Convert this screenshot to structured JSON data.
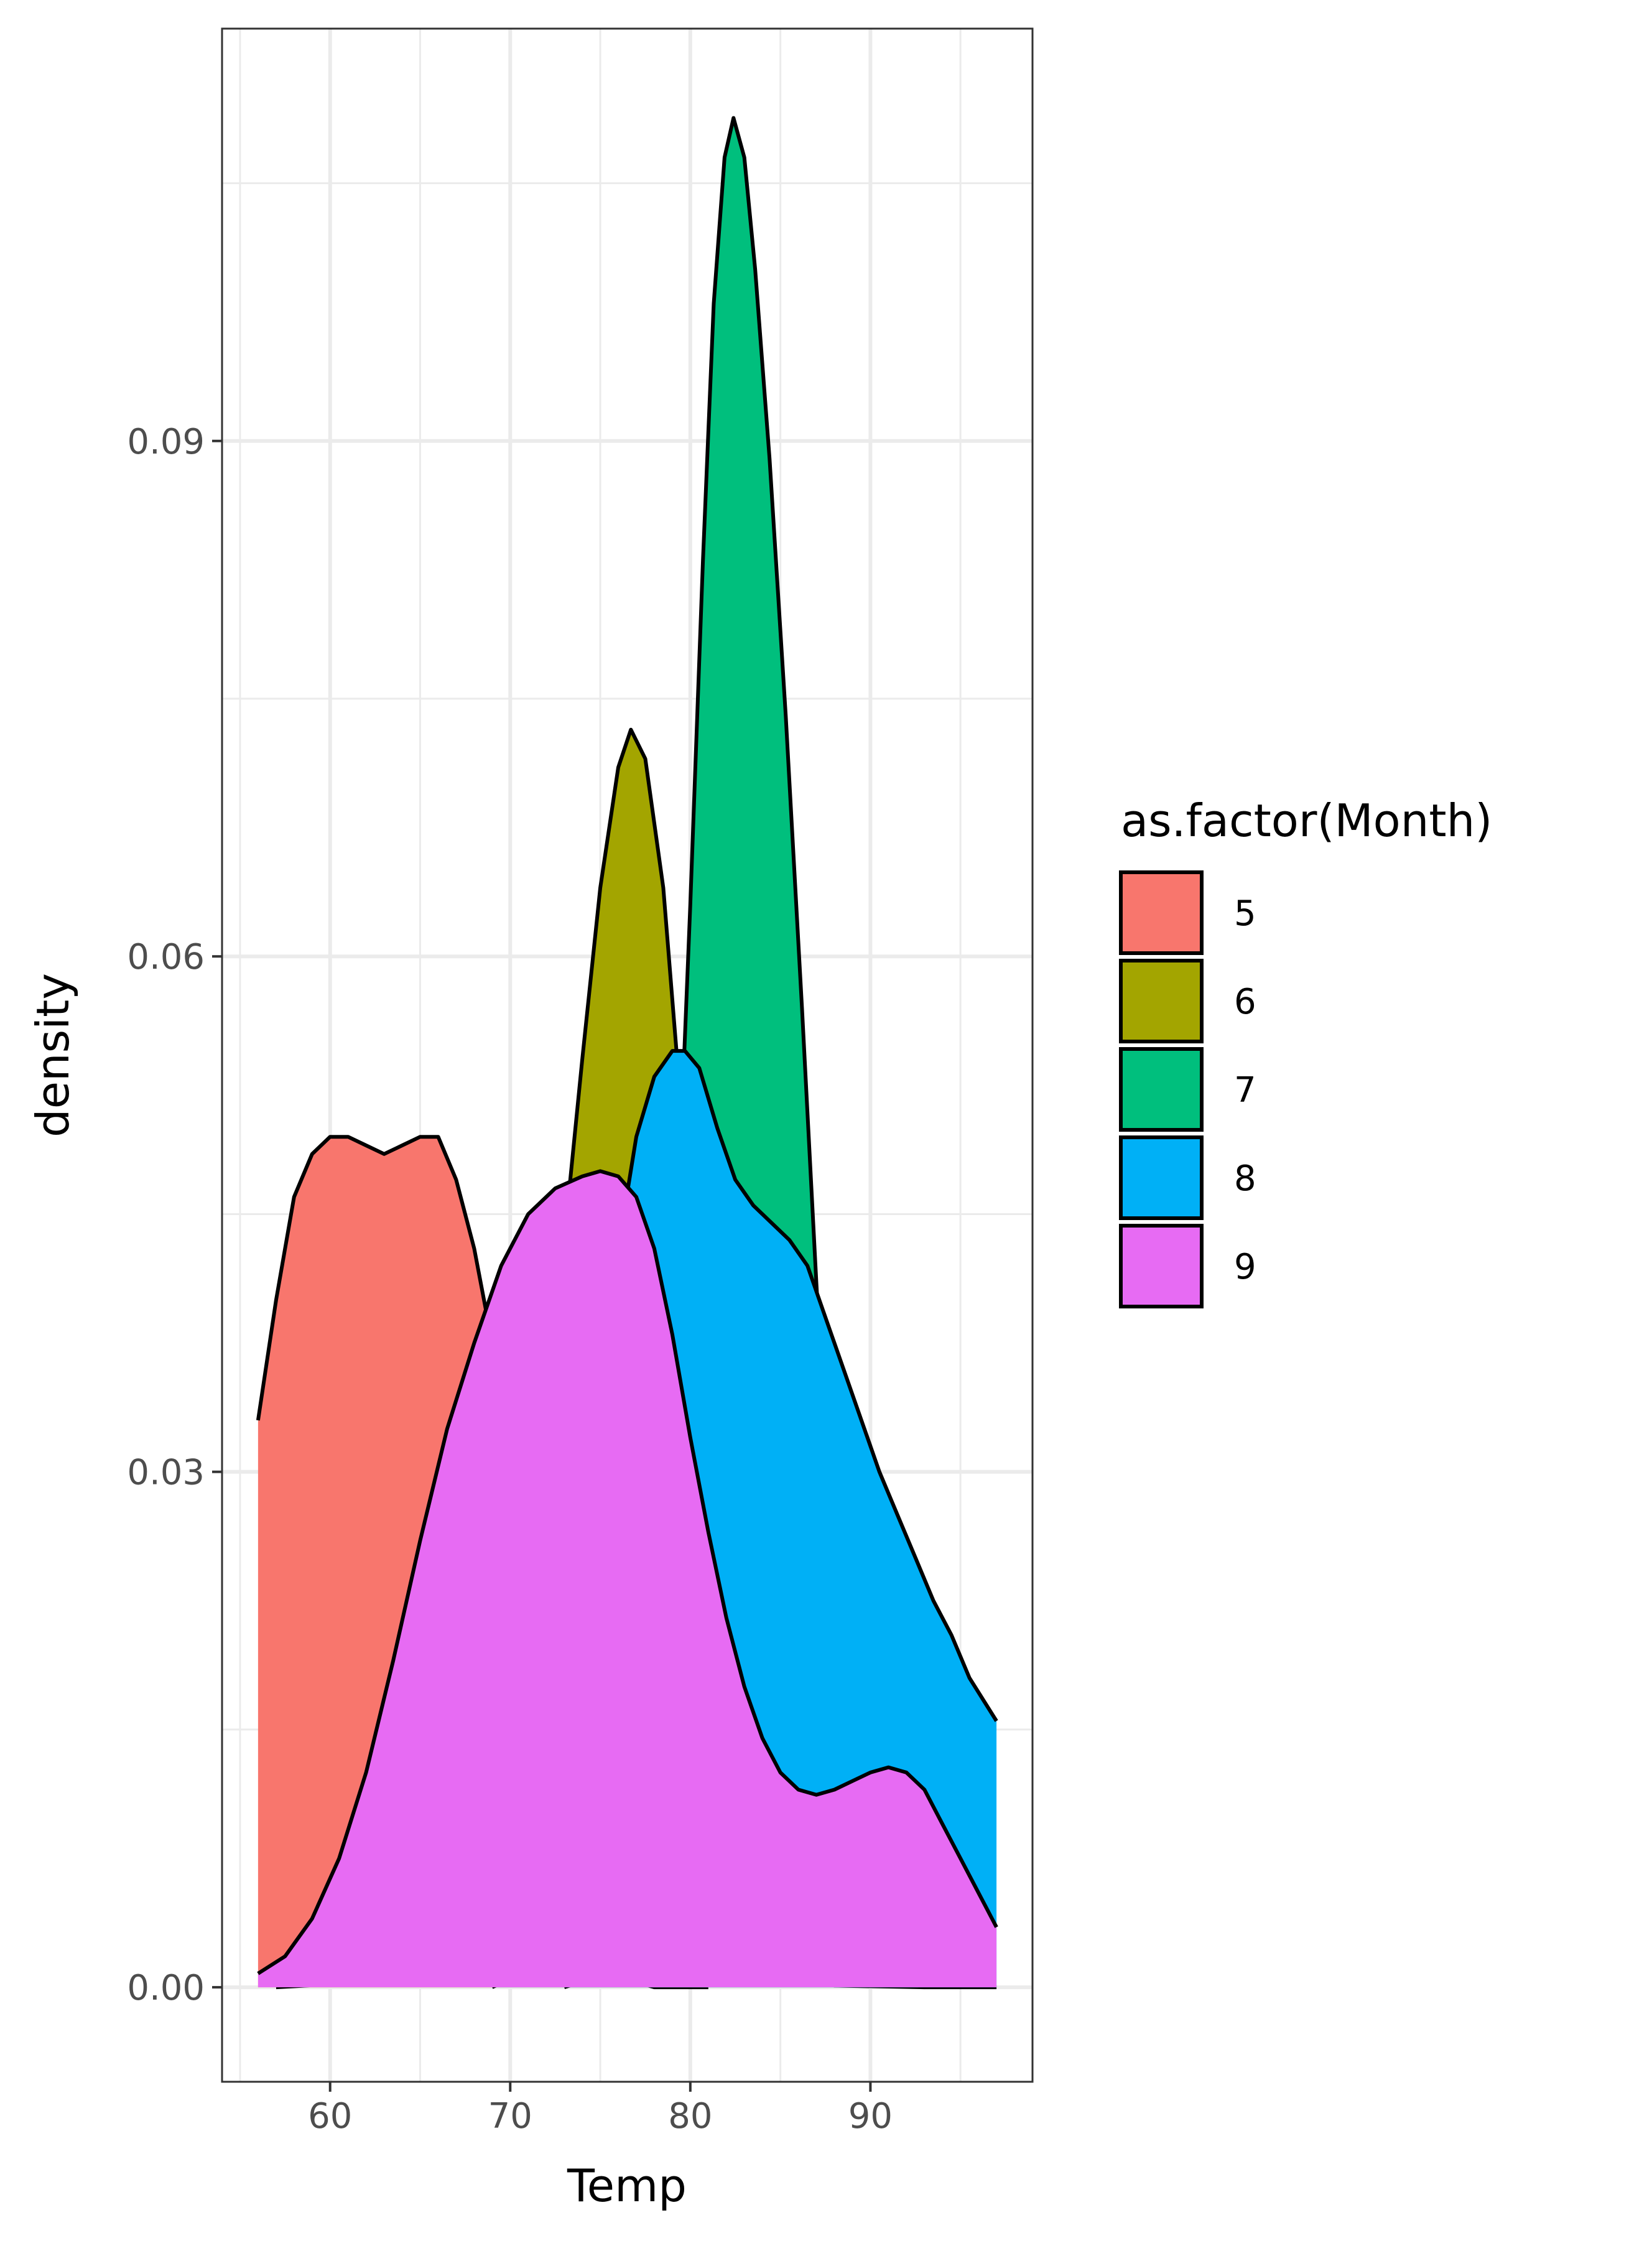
{
  "chart_data": {
    "type": "area",
    "subtype": "density",
    "title": "",
    "xlabel": "Temp",
    "ylabel": "density",
    "xlim": [
      54.0,
      99.0
    ],
    "ylim": [
      -0.0055,
      0.114
    ],
    "x_ticks": [
      60,
      70,
      80,
      90
    ],
    "x_tick_labels": [
      "60",
      "70",
      "80",
      "90"
    ],
    "y_ticks": [
      0.0,
      0.03,
      0.06,
      0.09
    ],
    "y_tick_labels": [
      "0.00",
      "0.03",
      "0.06",
      "0.09"
    ],
    "grid": true,
    "legend": {
      "title": "as.factor(Month)",
      "position": "right"
    },
    "series": [
      {
        "name": "5",
        "color": "#F8766D",
        "points": [
          [
            56,
            0.033
          ],
          [
            57,
            0.04
          ],
          [
            58,
            0.046
          ],
          [
            59,
            0.0485
          ],
          [
            60,
            0.0495
          ],
          [
            61,
            0.0495
          ],
          [
            62,
            0.049
          ],
          [
            63,
            0.0485
          ],
          [
            64,
            0.049
          ],
          [
            65,
            0.0495
          ],
          [
            66,
            0.0495
          ],
          [
            67,
            0.047
          ],
          [
            68,
            0.043
          ],
          [
            69,
            0.0375
          ],
          [
            70,
            0.031
          ],
          [
            71,
            0.024
          ],
          [
            72,
            0.0175
          ],
          [
            73,
            0.0115
          ],
          [
            74,
            0.007
          ],
          [
            75,
            0.0035
          ],
          [
            76,
            0.0015
          ],
          [
            77,
            0.0003
          ],
          [
            78,
            0.0
          ],
          [
            81,
            0.0
          ]
        ]
      },
      {
        "name": "6",
        "color": "#A3A500",
        "points": [
          [
            57,
            0.0
          ],
          [
            62,
            0.0003
          ],
          [
            64,
            0.002
          ],
          [
            66,
            0.006
          ],
          [
            68,
            0.013
          ],
          [
            70,
            0.022
          ],
          [
            72,
            0.034
          ],
          [
            73,
            0.0435
          ],
          [
            74,
            0.054
          ],
          [
            75,
            0.064
          ],
          [
            76,
            0.071
          ],
          [
            76.7,
            0.0732
          ],
          [
            77.5,
            0.0715
          ],
          [
            78.5,
            0.064
          ],
          [
            79.5,
            0.051
          ],
          [
            80.5,
            0.037
          ],
          [
            81.5,
            0.024
          ],
          [
            82.5,
            0.0135
          ],
          [
            84,
            0.005
          ],
          [
            86,
            0.001
          ],
          [
            88,
            0.0001
          ],
          [
            93,
            0.0
          ]
        ]
      },
      {
        "name": "7",
        "color": "#00BF7D",
        "points": [
          [
            73,
            0.0
          ],
          [
            74.5,
            0.0005
          ],
          [
            75.5,
            0.002
          ],
          [
            76.5,
            0.006
          ],
          [
            77.5,
            0.014
          ],
          [
            78.5,
            0.027
          ],
          [
            79.3,
            0.045
          ],
          [
            80,
            0.063
          ],
          [
            80.7,
            0.083
          ],
          [
            81.3,
            0.098
          ],
          [
            81.9,
            0.1065
          ],
          [
            82.4,
            0.1088
          ],
          [
            83,
            0.1065
          ],
          [
            83.6,
            0.1
          ],
          [
            84.4,
            0.089
          ],
          [
            85.3,
            0.074
          ],
          [
            86.2,
            0.057
          ],
          [
            87,
            0.041
          ],
          [
            87.8,
            0.026
          ],
          [
            88.6,
            0.014
          ],
          [
            89.5,
            0.006
          ],
          [
            90.5,
            0.002
          ],
          [
            91.5,
            0.0005
          ],
          [
            93,
            0.0
          ],
          [
            97,
            0.0
          ]
        ]
      },
      {
        "name": "8",
        "color": "#00B0F6",
        "points": [
          [
            69,
            0.0
          ],
          [
            70,
            0.0005
          ],
          [
            71,
            0.002
          ],
          [
            72,
            0.006
          ],
          [
            73,
            0.013
          ],
          [
            74,
            0.023
          ],
          [
            75,
            0.034
          ],
          [
            76,
            0.043
          ],
          [
            77,
            0.0495
          ],
          [
            78,
            0.053
          ],
          [
            79,
            0.0545
          ],
          [
            79.7,
            0.0545
          ],
          [
            80.5,
            0.0535
          ],
          [
            81.5,
            0.05
          ],
          [
            82.5,
            0.047
          ],
          [
            83.5,
            0.0455
          ],
          [
            84.5,
            0.0445
          ],
          [
            85.5,
            0.0435
          ],
          [
            86.5,
            0.042
          ],
          [
            87.5,
            0.039
          ],
          [
            88.5,
            0.036
          ],
          [
            89.5,
            0.033
          ],
          [
            90.5,
            0.03
          ],
          [
            91.5,
            0.0275
          ],
          [
            92.5,
            0.025
          ],
          [
            93.5,
            0.0225
          ],
          [
            94.5,
            0.0205
          ],
          [
            95.5,
            0.018
          ],
          [
            97,
            0.0155
          ]
        ]
      },
      {
        "name": "9",
        "color": "#E76BF3",
        "points": [
          [
            56,
            0.0008
          ],
          [
            57.5,
            0.0018
          ],
          [
            59,
            0.004
          ],
          [
            60.5,
            0.0075
          ],
          [
            62,
            0.0125
          ],
          [
            63.5,
            0.019
          ],
          [
            65,
            0.026
          ],
          [
            66.5,
            0.0325
          ],
          [
            68,
            0.0375
          ],
          [
            69.5,
            0.042
          ],
          [
            71,
            0.045
          ],
          [
            72.5,
            0.0465
          ],
          [
            74,
            0.0472
          ],
          [
            75,
            0.0475
          ],
          [
            76,
            0.0472
          ],
          [
            77,
            0.046
          ],
          [
            78,
            0.043
          ],
          [
            79,
            0.038
          ],
          [
            80,
            0.032
          ],
          [
            81,
            0.0265
          ],
          [
            82,
            0.0215
          ],
          [
            83,
            0.0175
          ],
          [
            84,
            0.0145
          ],
          [
            85,
            0.0125
          ],
          [
            86,
            0.0115
          ],
          [
            87,
            0.0112
          ],
          [
            88,
            0.0115
          ],
          [
            89,
            0.012
          ],
          [
            90,
            0.0125
          ],
          [
            91,
            0.0128
          ],
          [
            92,
            0.0125
          ],
          [
            93,
            0.0115
          ],
          [
            94,
            0.0095
          ],
          [
            95,
            0.0075
          ],
          [
            96,
            0.0055
          ],
          [
            97,
            0.0035
          ]
        ]
      }
    ]
  }
}
